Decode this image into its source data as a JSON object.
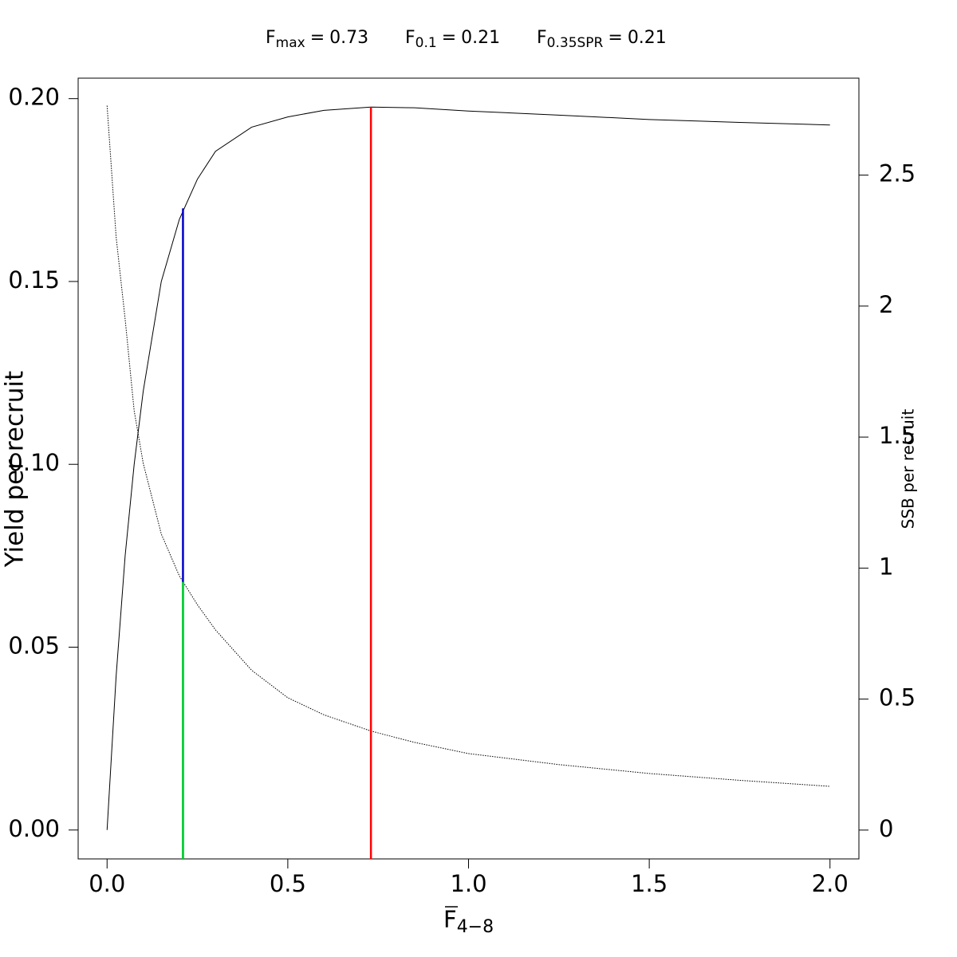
{
  "chart_data": {
    "type": "line",
    "title_items": [
      {
        "name": "F",
        "subscript": "max",
        "separator": "=",
        "value": 0.73,
        "color": "#ff0000",
        "y": 0.1977,
        "axis": "y"
      },
      {
        "name": "F",
        "subscript": "0.1",
        "separator": "=",
        "value": 0.21,
        "color": "#0000cc",
        "y": 0.17,
        "axis": "y"
      },
      {
        "name": "F",
        "subscript": "0.35SPR",
        "separator": "=",
        "value": 0.21,
        "color": "#00dd22",
        "y": 0.947,
        "axis": "y2"
      }
    ],
    "xlabel": {
      "main": "F",
      "sub": "4−8",
      "overline": true
    },
    "ylabel": "Yield per recruit",
    "y2label": "SSB per recruit",
    "x": [
      0,
      0.025,
      0.05,
      0.075,
      0.1,
      0.15,
      0.2,
      0.25,
      0.3,
      0.4,
      0.5,
      0.6,
      0.73,
      0.85,
      1.0,
      1.25,
      1.5,
      1.75,
      2.0
    ],
    "series": [
      {
        "name": "Yield per recruit",
        "color": "#000000",
        "dash": "solid",
        "axis": "y",
        "values": [
          0,
          0.042,
          0.075,
          0.1,
          0.12,
          0.15,
          0.167,
          0.178,
          0.1856,
          0.1922,
          0.195,
          0.1968,
          0.1977,
          0.1975,
          0.1966,
          0.1955,
          0.1943,
          0.1935,
          0.1928
        ]
      },
      {
        "name": "SSB per recruit",
        "color": "#000000",
        "dash": "dotted",
        "axis": "y2",
        "values": [
          2.765,
          2.265,
          1.95,
          1.6,
          1.4,
          1.13,
          0.97,
          0.86,
          0.764,
          0.61,
          0.505,
          0.44,
          0.378,
          0.335,
          0.292,
          0.25,
          0.216,
          0.19,
          0.167
        ]
      }
    ],
    "xlim": [
      -0.08,
      2.08
    ],
    "xticks": [
      {
        "value": 0,
        "label": "0.0"
      },
      0.5,
      {
        "value": 1,
        "label": "1.0"
      },
      1.5,
      {
        "value": 2,
        "label": "2.0"
      }
    ],
    "ylim": [
      -0.0079,
      0.2056
    ],
    "yticks": [
      {
        "value": 0,
        "label": "0.00"
      },
      {
        "value": 0.05,
        "label": "0.05"
      },
      {
        "value": 0.1,
        "label": "0.10"
      },
      {
        "value": 0.15,
        "label": "0.15"
      },
      {
        "value": 0.2,
        "label": "0.20"
      }
    ],
    "y2lim": [
      -0.11,
      2.87
    ],
    "y2ticks": [
      0,
      0.5,
      1,
      1.5,
      2,
      2.5
    ]
  }
}
